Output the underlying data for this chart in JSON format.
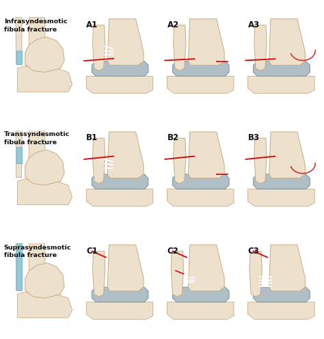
{
  "background_color": "#f5f5f5",
  "grid_color": "#bbbbbb",
  "bone_color": "#ede0cc",
  "bone_dark": "#c9aa84",
  "bone_shadow": "#d4bfa0",
  "cartilage_color": "#b0bec5",
  "cartilage_edge": "#78909c",
  "blue_color": "#8ec6d8",
  "blue_edge": "#5ba3be",
  "fracture_color": "#cc1111",
  "white_color": "#f0f0f0",
  "text_color": "#111111",
  "row_labels": [
    "Infrasyndesmotic\nfibula fracture",
    "Transsyndesmotic\nfibula fracture",
    "Suprasyndesmotic\nfibula fracture"
  ],
  "cell_labels": [
    [
      "",
      "A1",
      "A2",
      "A3"
    ],
    [
      "",
      "B1",
      "B2",
      "B3"
    ],
    [
      "",
      "C1",
      "C2",
      "C3"
    ]
  ]
}
